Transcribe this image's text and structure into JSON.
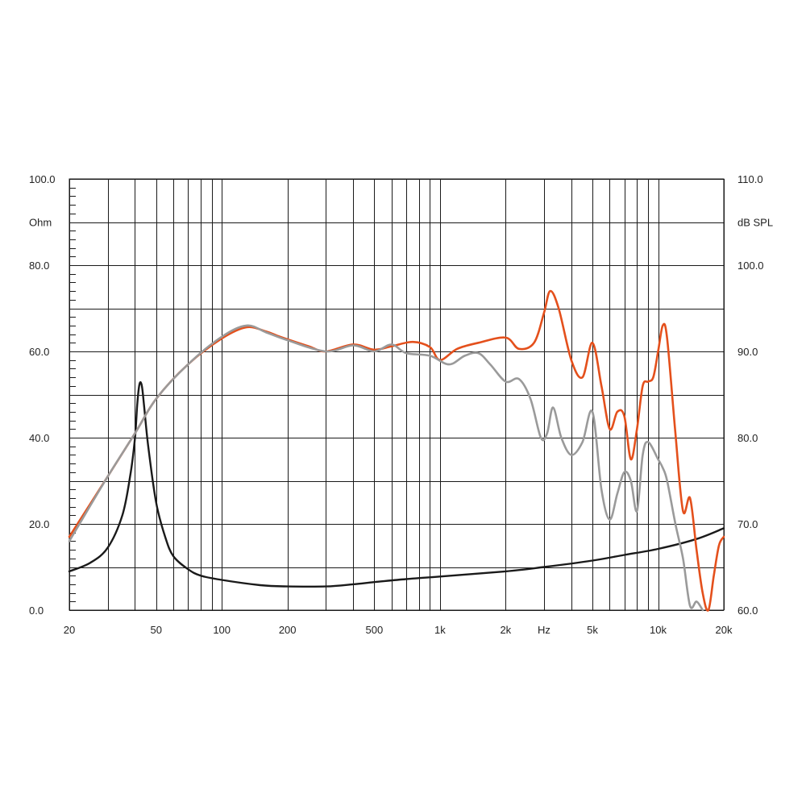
{
  "chart_data": {
    "type": "line",
    "title": "",
    "xlabel": "Hz",
    "y_left_label": "Ohm",
    "y_right_label": "dB SPL",
    "x_scale": "log",
    "xlim": [
      20,
      20000
    ],
    "ylim_left": [
      0,
      100
    ],
    "ylim_right": [
      60,
      110
    ],
    "grid": true,
    "legend": "none",
    "x_ticks": [
      {
        "value": 20,
        "label": "20"
      },
      {
        "value": 50,
        "label": "50"
      },
      {
        "value": 100,
        "label": "100"
      },
      {
        "value": 200,
        "label": "200"
      },
      {
        "value": 500,
        "label": "500"
      },
      {
        "value": 1000,
        "label": "1k"
      },
      {
        "value": 2000,
        "label": "2k"
      },
      {
        "value": 3000,
        "label": "Hz"
      },
      {
        "value": 5000,
        "label": "5k"
      },
      {
        "value": 10000,
        "label": "10k"
      },
      {
        "value": 20000,
        "label": "20k"
      }
    ],
    "x_gridlines": [
      20,
      30,
      40,
      50,
      60,
      70,
      80,
      90,
      100,
      200,
      300,
      400,
      500,
      600,
      700,
      800,
      900,
      1000,
      2000,
      3000,
      4000,
      5000,
      6000,
      7000,
      8000,
      9000,
      10000,
      20000
    ],
    "y_left_ticks": [
      {
        "value": 0,
        "label": "0.0"
      },
      {
        "value": 20,
        "label": "20.0"
      },
      {
        "value": 40,
        "label": "40.0"
      },
      {
        "value": 60,
        "label": "60.0"
      },
      {
        "value": 80,
        "label": "80.0"
      },
      {
        "value": 100,
        "label": "100.0"
      }
    ],
    "y_right_ticks": [
      {
        "value": 60,
        "label": "60.0"
      },
      {
        "value": 70,
        "label": "70.0"
      },
      {
        "value": 80,
        "label": "80.0"
      },
      {
        "value": 90,
        "label": "90.0"
      },
      {
        "value": 100,
        "label": "100.0"
      },
      {
        "value": 110,
        "label": "110.0"
      }
    ],
    "y_left_gridlines": [
      0,
      10,
      20,
      30,
      40,
      50,
      60,
      70,
      80,
      90,
      100
    ],
    "series": [
      {
        "id": "impedance",
        "axis": "left",
        "color": "#1a1a1a",
        "points": [
          [
            20,
            9
          ],
          [
            25,
            11
          ],
          [
            30,
            14.5
          ],
          [
            35,
            22
          ],
          [
            38,
            31
          ],
          [
            40,
            40
          ],
          [
            41,
            48
          ],
          [
            42,
            52.5
          ],
          [
            43,
            52
          ],
          [
            44,
            47.5
          ],
          [
            46,
            38
          ],
          [
            50,
            25
          ],
          [
            55,
            17
          ],
          [
            60,
            12.5
          ],
          [
            70,
            9.5
          ],
          [
            80,
            8
          ],
          [
            100,
            7
          ],
          [
            150,
            5.8
          ],
          [
            200,
            5.5
          ],
          [
            300,
            5.5
          ],
          [
            400,
            6
          ],
          [
            500,
            6.5
          ],
          [
            700,
            7.2
          ],
          [
            1000,
            7.8
          ],
          [
            2000,
            9
          ],
          [
            3000,
            10
          ],
          [
            5000,
            11.5
          ],
          [
            7000,
            12.8
          ],
          [
            10000,
            14.2
          ],
          [
            15000,
            16.5
          ],
          [
            20000,
            19
          ]
        ]
      },
      {
        "id": "spl-axis",
        "axis": "right",
        "color": "#e4501c",
        "points": [
          [
            20,
            68.5
          ],
          [
            30,
            75.5
          ],
          [
            40,
            80.5
          ],
          [
            50,
            84.5
          ],
          [
            70,
            88.5
          ],
          [
            100,
            91.5
          ],
          [
            130,
            92.8
          ],
          [
            160,
            92.3
          ],
          [
            180,
            91.8
          ],
          [
            200,
            91.4
          ],
          [
            250,
            90.6
          ],
          [
            300,
            90
          ],
          [
            400,
            90.8
          ],
          [
            500,
            90.2
          ],
          [
            600,
            90.6
          ],
          [
            750,
            91.1
          ],
          [
            900,
            90.5
          ],
          [
            1000,
            89
          ],
          [
            1200,
            90.3
          ],
          [
            1500,
            91
          ],
          [
            2000,
            91.6
          ],
          [
            2300,
            90.3
          ],
          [
            2700,
            91
          ],
          [
            3000,
            94.5
          ],
          [
            3200,
            97
          ],
          [
            3500,
            95
          ],
          [
            4000,
            89
          ],
          [
            4500,
            87
          ],
          [
            5000,
            91
          ],
          [
            5500,
            86
          ],
          [
            6000,
            81
          ],
          [
            6500,
            83
          ],
          [
            7000,
            82.5
          ],
          [
            7500,
            77.5
          ],
          [
            8000,
            81
          ],
          [
            8500,
            86
          ],
          [
            9000,
            86.5
          ],
          [
            9500,
            87
          ],
          [
            10000,
            90
          ],
          [
            10500,
            93
          ],
          [
            11000,
            91.5
          ],
          [
            12000,
            80.5
          ],
          [
            13000,
            71.5
          ],
          [
            14000,
            73
          ],
          [
            15000,
            67
          ],
          [
            16000,
            62
          ],
          [
            17000,
            60
          ],
          [
            18000,
            64
          ],
          [
            19000,
            67.5
          ],
          [
            20000,
            68.5
          ]
        ]
      },
      {
        "id": "spl-off-axis",
        "axis": "right",
        "color": "#9a9a9a",
        "points": [
          [
            20,
            68
          ],
          [
            30,
            75.5
          ],
          [
            40,
            80.5
          ],
          [
            50,
            84.5
          ],
          [
            70,
            88.5
          ],
          [
            100,
            91.7
          ],
          [
            130,
            93
          ],
          [
            160,
            92.2
          ],
          [
            200,
            91.3
          ],
          [
            300,
            90
          ],
          [
            400,
            90.7
          ],
          [
            500,
            90
          ],
          [
            600,
            90.8
          ],
          [
            700,
            89.8
          ],
          [
            900,
            89.5
          ],
          [
            1100,
            88.5
          ],
          [
            1300,
            89.5
          ],
          [
            1500,
            89.8
          ],
          [
            1700,
            88.5
          ],
          [
            2000,
            86.5
          ],
          [
            2300,
            86.8
          ],
          [
            2600,
            84.5
          ],
          [
            2900,
            80
          ],
          [
            3100,
            80.5
          ],
          [
            3300,
            83.5
          ],
          [
            3600,
            80
          ],
          [
            4000,
            78
          ],
          [
            4500,
            79.5
          ],
          [
            5000,
            83
          ],
          [
            5500,
            74
          ],
          [
            6000,
            70.5
          ],
          [
            6500,
            73.5
          ],
          [
            7000,
            76
          ],
          [
            7500,
            75
          ],
          [
            8000,
            71.5
          ],
          [
            8500,
            78
          ],
          [
            9000,
            79.5
          ],
          [
            10000,
            77.5
          ],
          [
            10500,
            76.5
          ],
          [
            11000,
            75
          ],
          [
            12000,
            70
          ],
          [
            13000,
            66
          ],
          [
            14000,
            60.5
          ],
          [
            15000,
            61
          ],
          [
            16000,
            60
          ]
        ]
      }
    ]
  }
}
